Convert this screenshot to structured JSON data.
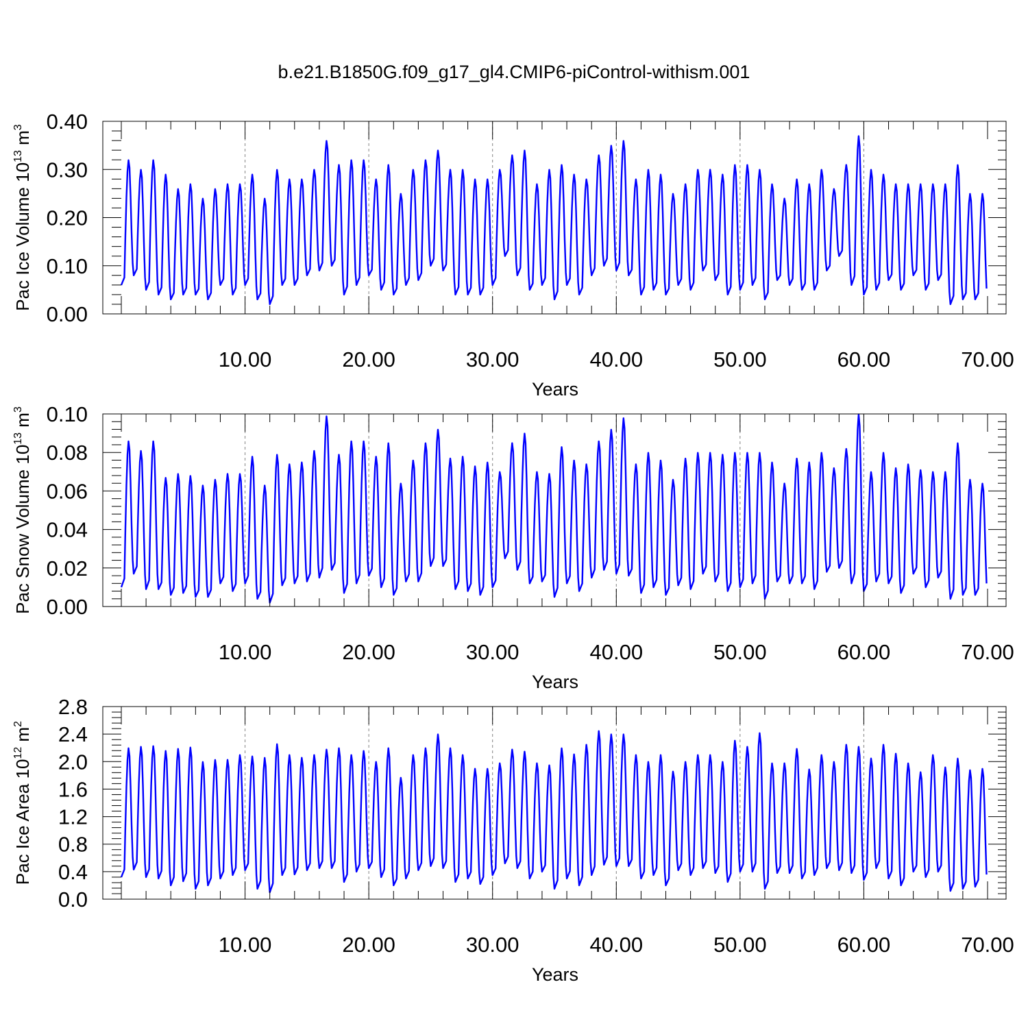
{
  "title": "b.e21.B1850G.f09_g17_gl4.CMIP6-piControl-withism.001",
  "colors": {
    "line": "#0000ff",
    "axes": "#000000",
    "grid": "#808080"
  },
  "chart_data": [
    {
      "type": "line",
      "ylabel": {
        "main": "Pac Ice Volume 10",
        "exp": "13",
        "unit": " m",
        "unit_exp": "3"
      },
      "xlabel": "Years",
      "xlim": [
        0.0,
        70.0
      ],
      "ylim": [
        0.0,
        0.4
      ],
      "x_ticks": [
        10,
        20,
        30,
        40,
        50,
        60,
        70
      ],
      "x_tick_labels": [
        "10.00",
        "20.00",
        "30.00",
        "40.00",
        "50.00",
        "60.00",
        "70.00"
      ],
      "y_ticks": [
        0.0,
        0.1,
        0.2,
        0.3,
        0.4
      ],
      "y_tick_labels": [
        "0.00",
        "0.10",
        "0.20",
        "0.30",
        "0.40"
      ],
      "x_grid": "dashed vertical lines at major ticks",
      "series": [
        {
          "sampling": "monthly, 12 points per year from x = 0.0",
          "annual_max": [
            0.32,
            0.3,
            0.32,
            0.29,
            0.26,
            0.27,
            0.24,
            0.26,
            0.27,
            0.27,
            0.29,
            0.24,
            0.3,
            0.28,
            0.28,
            0.3,
            0.36,
            0.31,
            0.32,
            0.32,
            0.28,
            0.31,
            0.25,
            0.3,
            0.32,
            0.34,
            0.3,
            0.3,
            0.28,
            0.28,
            0.3,
            0.33,
            0.34,
            0.27,
            0.3,
            0.31,
            0.29,
            0.28,
            0.33,
            0.35,
            0.36,
            0.28,
            0.3,
            0.29,
            0.25,
            0.27,
            0.3,
            0.3,
            0.29,
            0.31,
            0.31,
            0.3,
            0.27,
            0.24,
            0.28,
            0.27,
            0.3,
            0.26,
            0.31,
            0.37,
            0.3,
            0.29,
            0.27,
            0.27,
            0.27,
            0.27,
            0.27,
            0.31,
            0.25,
            0.25
          ],
          "annual_min": [
            0.06,
            0.08,
            0.05,
            0.04,
            0.03,
            0.04,
            0.04,
            0.03,
            0.06,
            0.04,
            0.06,
            0.03,
            0.02,
            0.06,
            0.06,
            0.08,
            0.09,
            0.1,
            0.04,
            0.06,
            0.08,
            0.05,
            0.04,
            0.06,
            0.07,
            0.1,
            0.09,
            0.04,
            0.04,
            0.04,
            0.06,
            0.12,
            0.08,
            0.05,
            0.06,
            0.03,
            0.06,
            0.04,
            0.08,
            0.1,
            0.09,
            0.08,
            0.04,
            0.05,
            0.04,
            0.06,
            0.05,
            0.09,
            0.07,
            0.04,
            0.05,
            0.06,
            0.03,
            0.07,
            0.06,
            0.05,
            0.05,
            0.09,
            0.12,
            0.06,
            0.04,
            0.05,
            0.07,
            0.05,
            0.08,
            0.05,
            0.07,
            0.02,
            0.03,
            0.03
          ]
        }
      ]
    },
    {
      "type": "line",
      "ylabel": {
        "main": "Pac Snow Volume 10",
        "exp": "13",
        "unit": " m",
        "unit_exp": "3"
      },
      "xlabel": "Years",
      "xlim": [
        0.0,
        70.0
      ],
      "ylim": [
        0.0,
        0.1
      ],
      "x_ticks": [
        10,
        20,
        30,
        40,
        50,
        60,
        70
      ],
      "x_tick_labels": [
        "10.00",
        "20.00",
        "30.00",
        "40.00",
        "50.00",
        "60.00",
        "70.00"
      ],
      "y_ticks": [
        0.0,
        0.02,
        0.04,
        0.06,
        0.08,
        0.1
      ],
      "y_tick_labels": [
        "0.00",
        "0.02",
        "0.04",
        "0.06",
        "0.08",
        "0.10"
      ],
      "x_grid": "dashed vertical lines at major ticks",
      "series": [
        {
          "sampling": "monthly, 12 points per year from x = 0.0",
          "annual_max": [
            0.086,
            0.081,
            0.086,
            0.067,
            0.069,
            0.068,
            0.063,
            0.066,
            0.069,
            0.069,
            0.078,
            0.063,
            0.079,
            0.074,
            0.075,
            0.081,
            0.099,
            0.079,
            0.086,
            0.086,
            0.078,
            0.085,
            0.064,
            0.076,
            0.085,
            0.092,
            0.077,
            0.078,
            0.073,
            0.075,
            0.07,
            0.085,
            0.09,
            0.07,
            0.069,
            0.083,
            0.076,
            0.074,
            0.086,
            0.092,
            0.098,
            0.074,
            0.08,
            0.076,
            0.066,
            0.077,
            0.08,
            0.08,
            0.079,
            0.08,
            0.08,
            0.08,
            0.075,
            0.064,
            0.077,
            0.075,
            0.08,
            0.072,
            0.082,
            0.1,
            0.07,
            0.08,
            0.072,
            0.074,
            0.071,
            0.07,
            0.07,
            0.085,
            0.066,
            0.064
          ],
          "annual_min": [
            0.01,
            0.017,
            0.009,
            0.009,
            0.006,
            0.007,
            0.005,
            0.005,
            0.012,
            0.008,
            0.012,
            0.004,
            0.002,
            0.011,
            0.012,
            0.013,
            0.015,
            0.019,
            0.007,
            0.012,
            0.016,
            0.01,
            0.006,
            0.013,
            0.013,
            0.021,
            0.021,
            0.009,
            0.008,
            0.006,
            0.01,
            0.025,
            0.019,
            0.012,
            0.013,
            0.005,
            0.012,
            0.008,
            0.015,
            0.019,
            0.017,
            0.016,
            0.007,
            0.01,
            0.006,
            0.011,
            0.009,
            0.017,
            0.013,
            0.008,
            0.01,
            0.012,
            0.004,
            0.013,
            0.012,
            0.012,
            0.009,
            0.018,
            0.02,
            0.012,
            0.008,
            0.013,
            0.012,
            0.007,
            0.017,
            0.01,
            0.015,
            0.004,
            0.006,
            0.006
          ]
        }
      ]
    },
    {
      "type": "line",
      "ylabel": {
        "main": "Pac Ice Area 10",
        "exp": "12",
        "unit": " m",
        "unit_exp": "2"
      },
      "xlabel": "Years",
      "xlim": [
        0.0,
        70.0
      ],
      "ylim": [
        0.0,
        2.8
      ],
      "x_ticks": [
        10,
        20,
        30,
        40,
        50,
        60,
        70
      ],
      "x_tick_labels": [
        "10.00",
        "20.00",
        "30.00",
        "40.00",
        "50.00",
        "60.00",
        "70.00"
      ],
      "y_ticks": [
        0.0,
        0.4,
        0.8,
        1.2,
        1.6,
        2.0,
        2.4,
        2.8
      ],
      "y_tick_labels": [
        "0.0",
        "0.4",
        "0.8",
        "1.2",
        "1.6",
        "2.0",
        "2.4",
        "2.8"
      ],
      "x_grid": "dashed vertical lines at major ticks",
      "series": [
        {
          "sampling": "monthly, 12 points per year from x = 0.0",
          "annual_max": [
            2.2,
            2.22,
            2.23,
            2.16,
            2.19,
            2.21,
            2.0,
            2.03,
            2.03,
            2.1,
            2.08,
            2.06,
            2.26,
            2.1,
            2.06,
            2.1,
            2.18,
            2.2,
            2.1,
            2.16,
            2.0,
            2.2,
            1.77,
            2.1,
            2.2,
            2.4,
            2.2,
            2.1,
            1.9,
            1.9,
            1.98,
            2.18,
            2.15,
            1.98,
            1.95,
            2.2,
            2.11,
            2.25,
            2.45,
            2.4,
            2.4,
            2.1,
            2.0,
            2.1,
            1.86,
            2.0,
            2.1,
            2.1,
            2.0,
            2.31,
            2.22,
            2.42,
            1.98,
            1.98,
            2.19,
            1.89,
            2.1,
            2.0,
            2.25,
            2.22,
            2.05,
            2.25,
            2.12,
            1.98,
            1.85,
            2.1,
            1.92,
            2.05,
            1.88,
            1.9
          ],
          "annual_min": [
            0.32,
            0.43,
            0.32,
            0.3,
            0.2,
            0.26,
            0.15,
            0.2,
            0.3,
            0.35,
            0.42,
            0.15,
            0.1,
            0.35,
            0.36,
            0.42,
            0.45,
            0.45,
            0.25,
            0.4,
            0.45,
            0.32,
            0.2,
            0.3,
            0.42,
            0.48,
            0.45,
            0.25,
            0.3,
            0.22,
            0.35,
            0.52,
            0.45,
            0.3,
            0.4,
            0.15,
            0.3,
            0.2,
            0.35,
            0.5,
            0.48,
            0.48,
            0.3,
            0.35,
            0.2,
            0.42,
            0.35,
            0.45,
            0.38,
            0.25,
            0.4,
            0.4,
            0.15,
            0.38,
            0.38,
            0.3,
            0.35,
            0.45,
            0.42,
            0.38,
            0.28,
            0.45,
            0.3,
            0.2,
            0.4,
            0.32,
            0.4,
            0.12,
            0.15,
            0.18
          ]
        }
      ]
    }
  ]
}
